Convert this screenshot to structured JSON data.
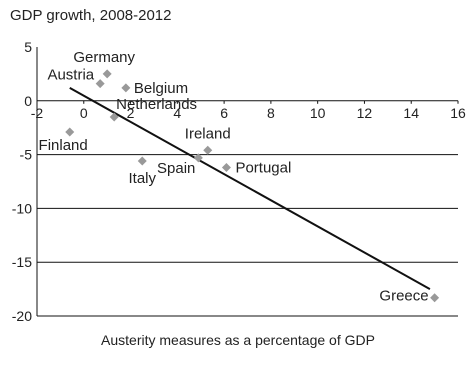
{
  "chart_data": {
    "type": "scatter",
    "title": "GDP growth, 2008-2012",
    "xlabel": "Austerity measures as a percentage of GDP",
    "ylabel": "",
    "xlim": [
      -2,
      16
    ],
    "ylim": [
      -20,
      5
    ],
    "x_ticks": [
      -2,
      0,
      2,
      4,
      6,
      8,
      10,
      12,
      14,
      16
    ],
    "y_ticks": [
      5,
      0,
      -5,
      -10,
      -15,
      -20
    ],
    "grid": "horizontal",
    "points": [
      {
        "label": "Germany",
        "x": 1.0,
        "y": 2.5
      },
      {
        "label": "Austria",
        "x": 0.7,
        "y": 1.6
      },
      {
        "label": "Belgium",
        "x": 1.8,
        "y": 1.2
      },
      {
        "label": "Netherlands",
        "x": 1.3,
        "y": -1.5
      },
      {
        "label": "Finland",
        "x": -0.6,
        "y": -2.9
      },
      {
        "label": "Ireland",
        "x": 5.3,
        "y": -4.6
      },
      {
        "label": "Spain",
        "x": 4.9,
        "y": -5.3
      },
      {
        "label": "Italy",
        "x": 2.5,
        "y": -5.6
      },
      {
        "label": "Portugal",
        "x": 6.1,
        "y": -6.2
      },
      {
        "label": "Greece",
        "x": 15.0,
        "y": -18.3
      }
    ],
    "trendline": {
      "x": [
        -0.6,
        14.8
      ],
      "y": [
        1.2,
        -17.5
      ]
    },
    "colors": {
      "marker": "#999999",
      "trendline": "#111111",
      "grid": "#111111"
    }
  }
}
